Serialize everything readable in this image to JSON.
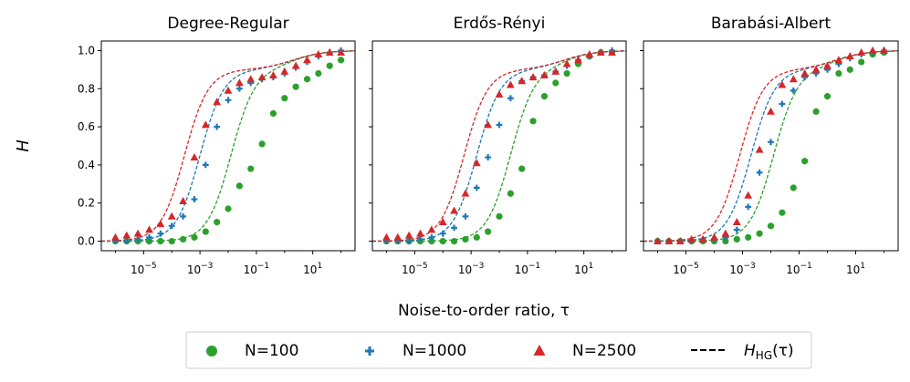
{
  "figure": {
    "ylabel": "H",
    "xlabel": "Noise-to-order ratio, τ"
  },
  "legend": {
    "entries": [
      {
        "label": "N=100",
        "marker": "circle",
        "color": "#2ca02c"
      },
      {
        "label": "N=1000",
        "marker": "plus",
        "color": "#1f77b4"
      },
      {
        "label": "N=2500",
        "marker": "triangle",
        "color": "#d62728"
      },
      {
        "label": "H_HG(τ)",
        "marker": "dashed-line",
        "color": "#000000"
      }
    ]
  },
  "chart_data": [
    {
      "type": "scatter",
      "title": "Degree-Regular",
      "xscale": "log",
      "xlim_exp": [
        -6.5,
        2.5
      ],
      "ylim": [
        -0.05,
        1.05
      ],
      "xticks": [
        "10^-5",
        "10^-3",
        "10^-1",
        "10^1"
      ],
      "yticks": [
        "0.0",
        "0.2",
        "0.4",
        "0.6",
        "0.8",
        "1.0"
      ],
      "series": [
        {
          "name": "N=100",
          "color": "#2ca02c",
          "marker": "circle",
          "x_exp": [
            -6,
            -5.6,
            -5.2,
            -4.8,
            -4.4,
            -4,
            -3.6,
            -3.2,
            -2.8,
            -2.4,
            -2,
            -1.6,
            -1.2,
            -0.8,
            -0.4,
            0,
            0.4,
            0.8,
            1.2,
            1.6,
            2
          ],
          "y": [
            0,
            0,
            0,
            0,
            0,
            0,
            0.01,
            0.02,
            0.05,
            0.1,
            0.17,
            0.29,
            0.38,
            0.51,
            0.67,
            0.75,
            0.81,
            0.85,
            0.88,
            0.92,
            0.95
          ]
        },
        {
          "name": "N=1000",
          "color": "#1f77b4",
          "marker": "plus",
          "x_exp": [
            -6,
            -5.6,
            -5.2,
            -4.8,
            -4.4,
            -4,
            -3.6,
            -3.2,
            -2.8,
            -2.4,
            -2,
            -1.6,
            -1.2,
            -0.8,
            -0.4,
            0,
            0.4,
            0.8,
            1.2,
            1.6,
            2
          ],
          "y": [
            0,
            0,
            0.01,
            0.02,
            0.04,
            0.08,
            0.13,
            0.22,
            0.4,
            0.6,
            0.74,
            0.8,
            0.83,
            0.85,
            0.86,
            0.88,
            0.91,
            0.94,
            0.97,
            0.99,
            1.0
          ]
        },
        {
          "name": "N=2500",
          "color": "#d62728",
          "marker": "triangle",
          "x_exp": [
            -6,
            -5.6,
            -5.2,
            -4.8,
            -4.4,
            -4,
            -3.6,
            -3.2,
            -2.8,
            -2.4,
            -2,
            -1.6,
            -1.2,
            -0.8,
            -0.4,
            0,
            0.4,
            0.8,
            1.2,
            1.6,
            2
          ],
          "y": [
            0.02,
            0.03,
            0.04,
            0.06,
            0.09,
            0.13,
            0.21,
            0.44,
            0.61,
            0.73,
            0.79,
            0.83,
            0.85,
            0.86,
            0.87,
            0.89,
            0.92,
            0.95,
            0.98,
            0.99,
            0.99
          ]
        }
      ],
      "curves": [
        {
          "name": "N=100",
          "color": "#2ca02c",
          "mid": -1.9,
          "w": 0.42
        },
        {
          "name": "N=1000",
          "color": "#1f77b4",
          "mid": -3.0,
          "w": 0.42
        },
        {
          "name": "N=2500",
          "color": "#d62728",
          "mid": -3.55,
          "w": 0.42
        }
      ]
    },
    {
      "type": "scatter",
      "title": "Erdős-Rényi",
      "xscale": "log",
      "xlim_exp": [
        -6.5,
        2.5
      ],
      "ylim": [
        -0.05,
        1.05
      ],
      "xticks": [
        "10^-5",
        "10^-3",
        "10^-1",
        "10^1"
      ],
      "yticks": [
        "0.0",
        "0.2",
        "0.4",
        "0.6",
        "0.8",
        "1.0"
      ],
      "series": [
        {
          "name": "N=100",
          "color": "#2ca02c",
          "marker": "circle",
          "x_exp": [
            -6,
            -5.6,
            -5.2,
            -4.8,
            -4.4,
            -4,
            -3.6,
            -3.2,
            -2.8,
            -2.4,
            -2,
            -1.6,
            -1.2,
            -0.8,
            -0.4,
            0,
            0.4,
            0.8,
            1.2,
            1.6,
            2
          ],
          "y": [
            0,
            0,
            0,
            0,
            0,
            0,
            0,
            0.01,
            0.02,
            0.05,
            0.13,
            0.25,
            0.38,
            0.63,
            0.76,
            0.83,
            0.88,
            0.93,
            0.97,
            0.99,
            0.99
          ]
        },
        {
          "name": "N=1000",
          "color": "#1f77b4",
          "marker": "plus",
          "x_exp": [
            -6,
            -5.6,
            -5.2,
            -4.8,
            -4.4,
            -4,
            -3.6,
            -3.2,
            -2.8,
            -2.4,
            -2,
            -1.6,
            -1.2,
            -0.8,
            -0.4,
            0,
            0.4,
            0.8,
            1.2,
            1.6,
            2
          ],
          "y": [
            0,
            0,
            0,
            0.01,
            0.02,
            0.04,
            0.07,
            0.13,
            0.28,
            0.44,
            0.61,
            0.75,
            0.84,
            0.86,
            0.87,
            0.89,
            0.92,
            0.95,
            0.97,
            0.99,
            1.0
          ]
        },
        {
          "name": "N=2500",
          "color": "#d62728",
          "marker": "triangle",
          "x_exp": [
            -6,
            -5.6,
            -5.2,
            -4.8,
            -4.4,
            -4,
            -3.6,
            -3.2,
            -2.8,
            -2.4,
            -2,
            -1.6,
            -1.2,
            -0.8,
            -0.4,
            0,
            0.4,
            0.8,
            1.2,
            1.6,
            2
          ],
          "y": [
            0.02,
            0.02,
            0.03,
            0.04,
            0.06,
            0.1,
            0.16,
            0.25,
            0.41,
            0.61,
            0.77,
            0.82,
            0.84,
            0.86,
            0.87,
            0.89,
            0.93,
            0.95,
            0.98,
            0.99,
            0.99
          ]
        }
      ],
      "curves": [
        {
          "name": "N=100",
          "color": "#2ca02c",
          "mid": -1.6,
          "w": 0.42
        },
        {
          "name": "N=1000",
          "color": "#1f77b4",
          "mid": -2.8,
          "w": 0.42
        },
        {
          "name": "N=2500",
          "color": "#d62728",
          "mid": -3.25,
          "w": 0.42
        }
      ]
    },
    {
      "type": "scatter",
      "title": "Barabási-Albert",
      "xscale": "log",
      "xlim_exp": [
        -6.5,
        2.5
      ],
      "ylim": [
        -0.05,
        1.05
      ],
      "xticks": [
        "10^-5",
        "10^-3",
        "10^-1",
        "10^1"
      ],
      "yticks": [
        "0.0",
        "0.2",
        "0.4",
        "0.6",
        "0.8",
        "1.0"
      ],
      "series": [
        {
          "name": "N=100",
          "color": "#2ca02c",
          "marker": "circle",
          "x_exp": [
            -6,
            -5.6,
            -5.2,
            -4.8,
            -4.4,
            -4,
            -3.6,
            -3.2,
            -2.8,
            -2.4,
            -2,
            -1.6,
            -1.2,
            -0.8,
            -0.4,
            0,
            0.4,
            0.8,
            1.2,
            1.6,
            2
          ],
          "y": [
            0,
            0,
            0,
            0,
            0,
            0,
            0,
            0.01,
            0.02,
            0.04,
            0.08,
            0.15,
            0.28,
            0.42,
            0.68,
            0.76,
            0.88,
            0.9,
            0.94,
            0.98,
            0.99
          ]
        },
        {
          "name": "N=1000",
          "color": "#1f77b4",
          "marker": "plus",
          "x_exp": [
            -6,
            -5.6,
            -5.2,
            -4.8,
            -4.4,
            -4,
            -3.6,
            -3.2,
            -2.8,
            -2.4,
            -2,
            -1.6,
            -1.2,
            -0.8,
            -0.4,
            0,
            0.4,
            0.8,
            1.2,
            1.6,
            2
          ],
          "y": [
            0,
            0,
            0,
            0,
            0.01,
            0.01,
            0.02,
            0.06,
            0.18,
            0.36,
            0.52,
            0.72,
            0.79,
            0.86,
            0.88,
            0.9,
            0.93,
            0.96,
            0.98,
            0.99,
            1.0
          ]
        },
        {
          "name": "N=2500",
          "color": "#d62728",
          "marker": "triangle",
          "x_exp": [
            -6,
            -5.6,
            -5.2,
            -4.8,
            -4.4,
            -4,
            -3.6,
            -3.2,
            -2.8,
            -2.4,
            -2,
            -1.6,
            -1.2,
            -0.8,
            -0.4,
            0,
            0.4,
            0.8,
            1.2,
            1.6,
            2
          ],
          "y": [
            0,
            0,
            0,
            0.01,
            0.01,
            0.02,
            0.04,
            0.1,
            0.24,
            0.48,
            0.68,
            0.82,
            0.85,
            0.88,
            0.9,
            0.92,
            0.95,
            0.97,
            0.99,
            1.0,
            1.0
          ]
        }
      ],
      "curves": [
        {
          "name": "N=100",
          "color": "#2ca02c",
          "mid": -1.9,
          "w": 0.42
        },
        {
          "name": "N=1000",
          "color": "#1f77b4",
          "mid": -2.7,
          "w": 0.42
        },
        {
          "name": "N=2500",
          "color": "#d62728",
          "mid": -3.1,
          "w": 0.42
        }
      ]
    }
  ]
}
